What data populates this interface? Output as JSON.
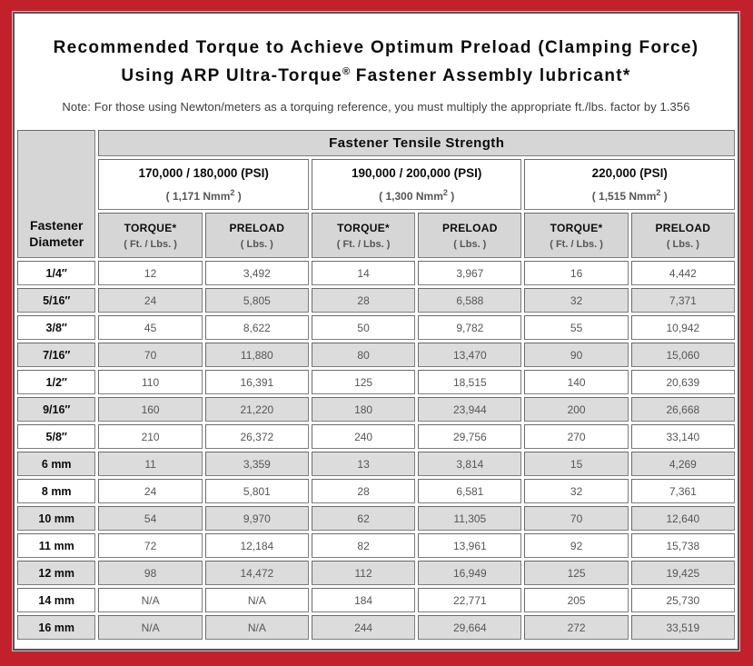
{
  "colors": {
    "frame_red": "#c2202a",
    "panel_border": "#55565a",
    "header_gray": "#d6d6d6",
    "row_shade": "#dcdcdc",
    "cell_border": "#7d7d7d",
    "value_text": "#55565a"
  },
  "title": {
    "line1": "Recommended Torque to Achieve Optimum Preload (Clamping Force)",
    "line2_before_reg": "Using ARP Ultra-Torque",
    "reg_mark": "®",
    "line2_after_reg": " Fastener Assembly lubricant*",
    "note": "Note: For those using Newton/meters as a torquing reference, you must multiply the appropriate ft./lbs. factor by 1.356"
  },
  "table": {
    "group_header": "Fastener Tensile Strength",
    "corner_header_line1": "Fastener",
    "corner_header_line2": "Diameter",
    "psi_groups": [
      {
        "psi_label": "170,000 / 180,000 (PSI)",
        "nmm_before_sup": "( 1,171 Nmm",
        "nmm_sup": "2",
        "nmm_after_sup": " )"
      },
      {
        "psi_label": "190,000 / 200,000 (PSI)",
        "nmm_before_sup": "( 1,300 Nmm",
        "nmm_sup": "2",
        "nmm_after_sup": " )"
      },
      {
        "psi_label": "220,000 (PSI)",
        "nmm_before_sup": "( 1,515 Nmm",
        "nmm_sup": "2",
        "nmm_after_sup": " )"
      }
    ],
    "column_headers": {
      "torque_label": "TORQUE*",
      "torque_sub": "( Ft. / Lbs. )",
      "preload_label": "PRELOAD",
      "preload_sub": "( Lbs. )"
    },
    "rows": [
      {
        "diameter": "1/4″",
        "values": [
          "12",
          "3,492",
          "14",
          "3,967",
          "16",
          "4,442"
        ]
      },
      {
        "diameter": "5/16″",
        "values": [
          "24",
          "5,805",
          "28",
          "6,588",
          "32",
          "7,371"
        ]
      },
      {
        "diameter": "3/8″",
        "values": [
          "45",
          "8,622",
          "50",
          "9,782",
          "55",
          "10,942"
        ]
      },
      {
        "diameter": "7/16″",
        "values": [
          "70",
          "11,880",
          "80",
          "13,470",
          "90",
          "15,060"
        ]
      },
      {
        "diameter": "1/2″",
        "values": [
          "110",
          "16,391",
          "125",
          "18,515",
          "140",
          "20,639"
        ]
      },
      {
        "diameter": "9/16″",
        "values": [
          "160",
          "21,220",
          "180",
          "23,944",
          "200",
          "26,668"
        ]
      },
      {
        "diameter": "5/8″",
        "values": [
          "210",
          "26,372",
          "240",
          "29,756",
          "270",
          "33,140"
        ]
      },
      {
        "diameter": "6 mm",
        "values": [
          "11",
          "3,359",
          "13",
          "3,814",
          "15",
          "4,269"
        ]
      },
      {
        "diameter": "8 mm",
        "values": [
          "24",
          "5,801",
          "28",
          "6,581",
          "32",
          "7,361"
        ]
      },
      {
        "diameter": "10 mm",
        "values": [
          "54",
          "9,970",
          "62",
          "11,305",
          "70",
          "12,640"
        ]
      },
      {
        "diameter": "11 mm",
        "values": [
          "72",
          "12,184",
          "82",
          "13,961",
          "92",
          "15,738"
        ]
      },
      {
        "diameter": "12 mm",
        "values": [
          "98",
          "14,472",
          "112",
          "16,949",
          "125",
          "19,425"
        ]
      },
      {
        "diameter": "14 mm",
        "values": [
          "N/A",
          "N/A",
          "184",
          "22,771",
          "205",
          "25,730"
        ]
      },
      {
        "diameter": "16 mm",
        "values": [
          "N/A",
          "N/A",
          "244",
          "29,664",
          "272",
          "33,519"
        ]
      }
    ]
  }
}
